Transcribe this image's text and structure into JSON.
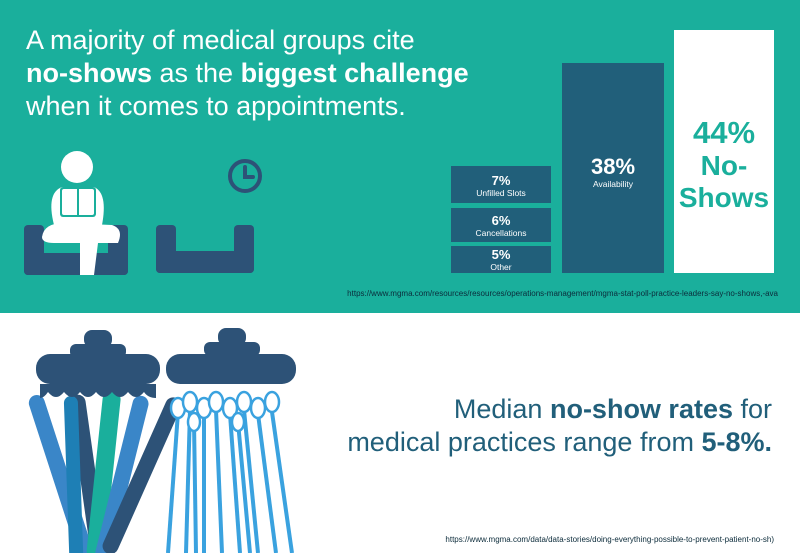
{
  "header": {
    "line1": "A majority of medical groups cite",
    "emph1": "no-shows",
    "mid": " as the ",
    "emph2": "biggest challenge",
    "line3": "when it comes to appointments."
  },
  "stats": [
    {
      "pct": "7%",
      "label": "Unfilled Slots"
    },
    {
      "pct": "6%",
      "label": "Cancellations"
    },
    {
      "pct": "5%",
      "label": "Other"
    },
    {
      "pct": "38%",
      "label": "Availability"
    }
  ],
  "highlight": {
    "pct": "44%",
    "line1": "No-",
    "line2": "Shows"
  },
  "source1": "https://www.mgma.com/resources/resources/operations-management/mgma-stat-poll-practice-leaders-say-no-shows,-ava",
  "statement": {
    "pre": "Median ",
    "emph": "no-show rates",
    "post": " for",
    "line2": "medical practices range from ",
    "emph2": "5-8%."
  },
  "source2": "https://www.mgma.com/data/data-stories/doing-everything-possible-to-prevent-patient-no-sh)",
  "colors": {
    "teal": "#1aaf9c",
    "navy": "#215f7a",
    "dark": "#2d5277",
    "light_blue": "#3aa2df"
  },
  "icons": [
    "person-reading-icon",
    "chair-icon",
    "clock-icon",
    "jar-icon"
  ]
}
